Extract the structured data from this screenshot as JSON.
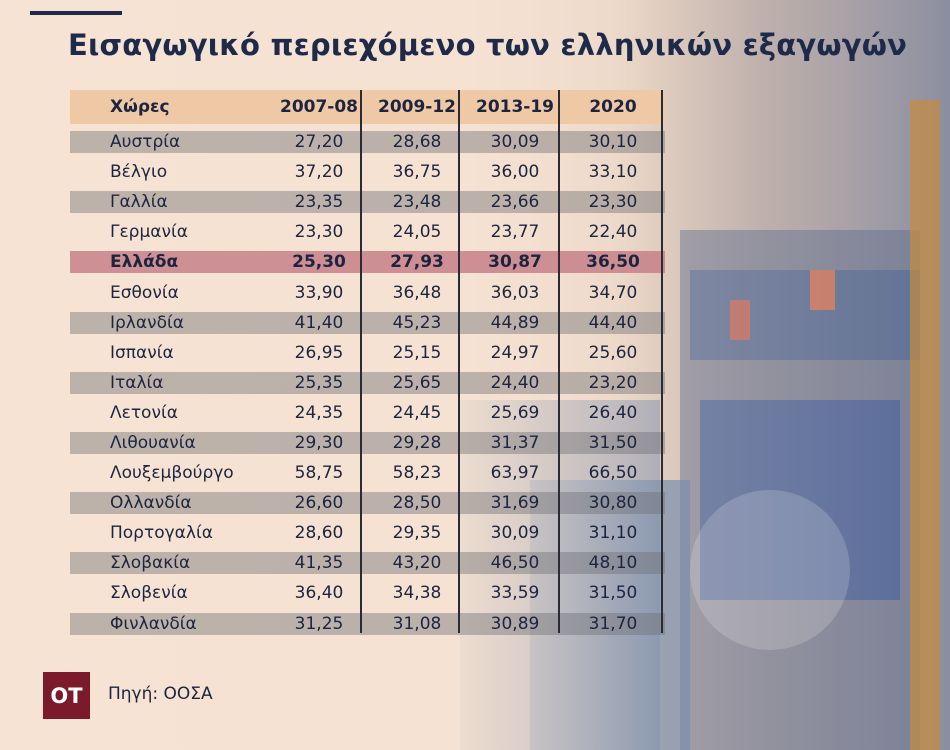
{
  "header": {
    "title": "Εισαγωγικό περιεχόμενο των ελληνικών εξαγωγών"
  },
  "table": {
    "columns": [
      "Χώρες",
      "2007-08",
      "2009-12",
      "2013-19",
      "2020"
    ],
    "highlight_row": 4,
    "rows": [
      [
        "Αυστρία",
        "27,20",
        "28,68",
        "30,09",
        "30,10"
      ],
      [
        "Βέλγιο",
        "37,20",
        "36,75",
        "36,00",
        "33,10"
      ],
      [
        "Γαλλία",
        "23,35",
        "23,48",
        "23,66",
        "23,30"
      ],
      [
        "Γερμανία",
        "23,30",
        "24,05",
        "23,77",
        "22,40"
      ],
      [
        "Ελλάδα",
        "25,30",
        "27,93",
        "30,87",
        "36,50"
      ],
      [
        "Εσθονία",
        "33,90",
        "36,48",
        "36,03",
        "34,70"
      ],
      [
        "Ιρλανδία",
        "41,40",
        "45,23",
        "44,89",
        "44,40"
      ],
      [
        "Ισπανία",
        "26,95",
        "25,15",
        "24,97",
        "25,60"
      ],
      [
        "Ιταλία",
        "25,35",
        "25,65",
        "24,40",
        "23,20"
      ],
      [
        "Λετονία",
        "24,35",
        "24,45",
        "25,69",
        "26,40"
      ],
      [
        "Λιθουανία",
        "29,30",
        "29,28",
        "31,37",
        "31,50"
      ],
      [
        "Λουξεμβούργο",
        "58,75",
        "58,23",
        "63,97",
        "66,50"
      ],
      [
        "Ολλανδία",
        "26,60",
        "28,50",
        "31,69",
        "30,80"
      ],
      [
        "Πορτογαλία",
        "28,60",
        "29,35",
        "30,09",
        "31,10"
      ],
      [
        "Σλοβακία",
        "41,35",
        "43,20",
        "46,50",
        "48,10"
      ],
      [
        "Σλοβενία",
        "36,40",
        "34,38",
        "33,59",
        "31,50"
      ],
      [
        "Φινλανδία",
        "31,25",
        "31,08",
        "30,89",
        "31,70"
      ]
    ]
  },
  "footer": {
    "logo": "OT",
    "source": "Πηγή: ΟΟΣΑ"
  }
}
